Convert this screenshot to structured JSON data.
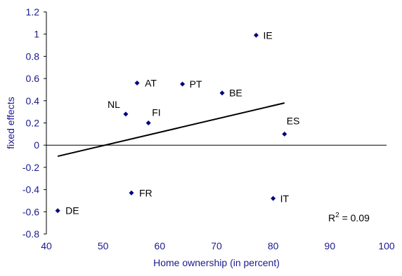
{
  "chart_data": {
    "type": "scatter",
    "title": "",
    "xlabel": "Home ownership (in percent)",
    "ylabel": "fixed effects",
    "xlim": [
      40,
      100
    ],
    "ylim": [
      -0.8,
      1.2
    ],
    "x_ticks": [
      40,
      50,
      60,
      70,
      80,
      90,
      100
    ],
    "y_ticks": [
      -0.8,
      -0.6,
      -0.4,
      -0.2,
      0,
      0.2,
      0.4,
      0.6,
      0.8,
      1,
      1.2
    ],
    "y_tick_labels": [
      "-0.8",
      "-0.6",
      "-0.4",
      "-0.2",
      "0",
      "0.2",
      "0.4",
      "0.6",
      "0.8",
      "1",
      "1.2"
    ],
    "x_tick_labels": [
      "40",
      "50",
      "60",
      "70",
      "80",
      "90",
      "100"
    ],
    "grid": false,
    "legend": "none",
    "points": [
      {
        "label": "IE",
        "x": 77,
        "y": 0.99
      },
      {
        "label": "AT",
        "x": 56,
        "y": 0.56
      },
      {
        "label": "PT",
        "x": 64,
        "y": 0.55
      },
      {
        "label": "BE",
        "x": 71,
        "y": 0.47
      },
      {
        "label": "NL",
        "x": 54,
        "y": 0.28
      },
      {
        "label": "FI",
        "x": 58,
        "y": 0.2
      },
      {
        "label": "ES",
        "x": 82,
        "y": 0.1
      },
      {
        "label": "FR",
        "x": 55,
        "y": -0.43
      },
      {
        "label": "IT",
        "x": 80,
        "y": -0.48
      },
      {
        "label": "DE",
        "x": 42,
        "y": -0.59
      }
    ],
    "trendline": {
      "x": [
        42,
        82
      ],
      "y": [
        -0.1,
        0.38
      ]
    },
    "r_squared_label": "R",
    "r_squared_exponent": "2",
    "r_squared_value": " = 0.09",
    "colors": {
      "marker": "#00007f",
      "axis_text": "#1a1a8c",
      "axis_line": "#000000",
      "trendline": "#000000"
    }
  }
}
